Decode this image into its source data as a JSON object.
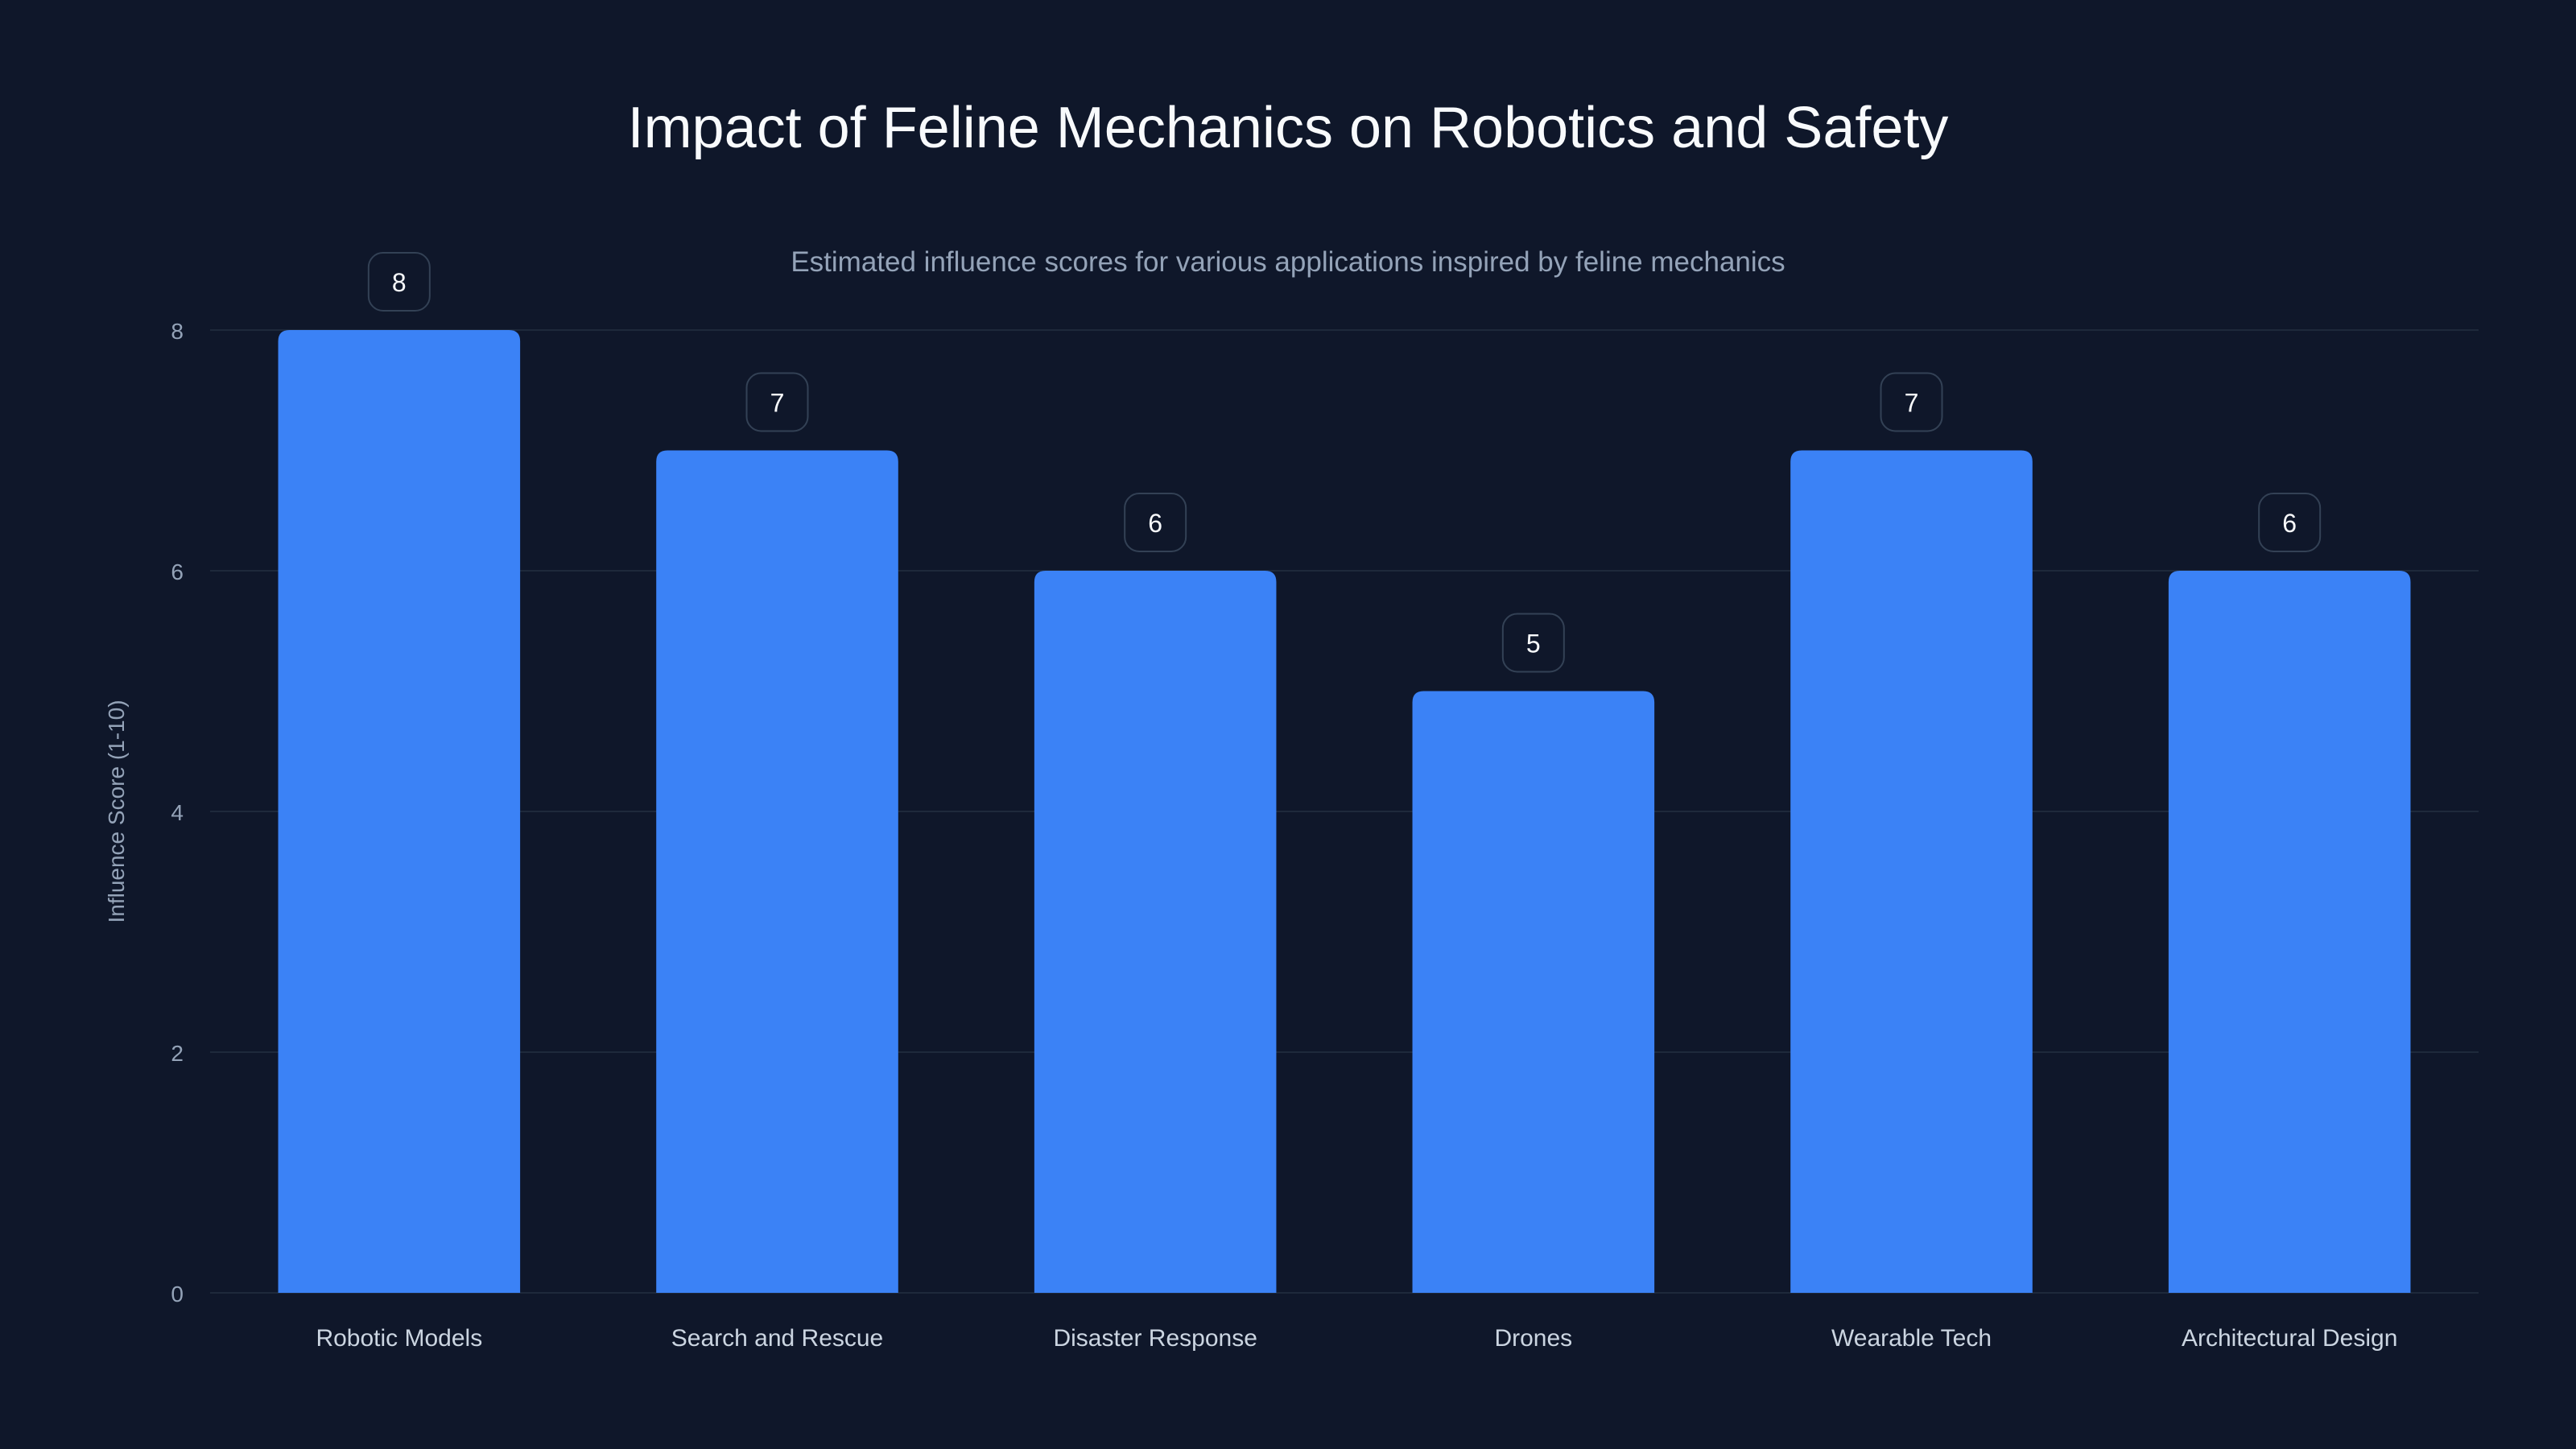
{
  "chart_data": {
    "type": "bar",
    "title": "Impact of Feline Mechanics on Robotics and Safety",
    "subtitle": "Estimated influence scores for various applications inspired by feline mechanics",
    "xlabel": "",
    "ylabel": "Influence Score (1-10)",
    "categories": [
      "Robotic Models",
      "Search and Rescue",
      "Disaster Response",
      "Drones",
      "Wearable Tech",
      "Architectural Design"
    ],
    "values": [
      8,
      7,
      6,
      5,
      7,
      6
    ],
    "ylim": [
      0,
      8
    ],
    "yticks": [
      0,
      2,
      4,
      6,
      8
    ],
    "grid": true,
    "data_labels": true,
    "colors": {
      "background": "#0f172a",
      "bar": "#3b82f6",
      "grid": "#1e293b",
      "axis_text": "#94a3b8",
      "label_border": "#334155"
    }
  }
}
